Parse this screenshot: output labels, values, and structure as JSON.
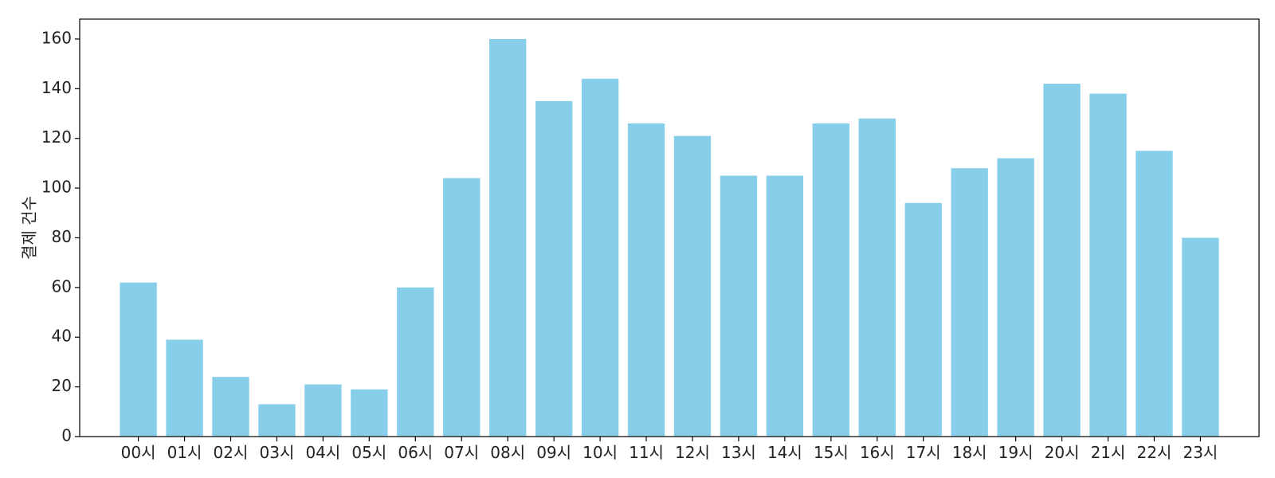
{
  "chart_data": {
    "type": "bar",
    "title": "",
    "xlabel": "",
    "ylabel": "결제 건수",
    "categories": [
      "00시",
      "01시",
      "02시",
      "03시",
      "04시",
      "05시",
      "06시",
      "07시",
      "08시",
      "09시",
      "10시",
      "11시",
      "12시",
      "13시",
      "14시",
      "15시",
      "16시",
      "17시",
      "18시",
      "19시",
      "20시",
      "21시",
      "22시",
      "23시"
    ],
    "values": [
      62,
      39,
      24,
      13,
      21,
      19,
      60,
      104,
      160,
      135,
      144,
      126,
      121,
      105,
      105,
      126,
      128,
      94,
      108,
      112,
      142,
      138,
      115,
      80
    ],
    "ylim": [
      0,
      168
    ],
    "yticks": [
      0,
      20,
      40,
      60,
      80,
      100,
      120,
      140,
      160
    ],
    "bar_color": "#87CEEB",
    "grid": false,
    "legend": "none"
  }
}
